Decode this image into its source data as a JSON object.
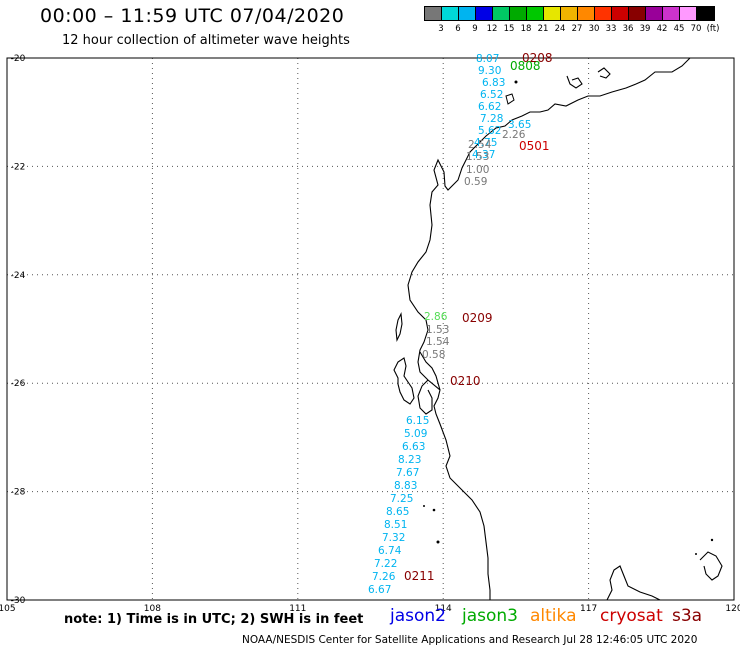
{
  "header": {
    "title": "00:00 – 11:59 UTC 07/04/2020",
    "subtitle": "12 hour collection of altimeter wave heights"
  },
  "legend": {
    "colors": [
      "#777777",
      "#00d8d8",
      "#00b4f0",
      "#0000e6",
      "#00c864",
      "#00aa00",
      "#00c800",
      "#e6e600",
      "#f0b400",
      "#ff8800",
      "#ff3300",
      "#cc0000",
      "#880000",
      "#990099",
      "#cc33cc",
      "#ff99ff",
      "#000000"
    ],
    "labels": [
      "3",
      "6",
      "9",
      "12",
      "15",
      "18",
      "21",
      "24",
      "27",
      "30",
      "33",
      "36",
      "39",
      "42",
      "45",
      "70",
      "(ft)"
    ]
  },
  "axes": {
    "x_ticks": [
      "105",
      "108",
      "111",
      "114",
      "117",
      "120"
    ],
    "y_ticks": [
      "-20",
      "-22",
      "-24",
      "-26",
      "-28",
      "-30"
    ]
  },
  "tracks": [
    {
      "label": "0501",
      "color": "#cc0000"
    },
    {
      "label": "0209",
      "color": "#880000"
    },
    {
      "label": "0210",
      "color": "#880000"
    },
    {
      "label": "0211",
      "color": "#880000"
    },
    {
      "label": "0808",
      "color": "#00aa00"
    },
    {
      "label": "0208",
      "color": "#880000"
    }
  ],
  "wave_labels": [
    {
      "text": "8.07",
      "color": "#00b4f0"
    },
    {
      "text": "9.30",
      "color": "#00b4f0"
    },
    {
      "text": "6.83",
      "color": "#00b4f0"
    },
    {
      "text": "6.52",
      "color": "#00b4f0"
    },
    {
      "text": "6.62",
      "color": "#00b4f0"
    },
    {
      "text": "7.28",
      "color": "#00b4f0"
    },
    {
      "text": "5.62",
      "color": "#00b4f0"
    },
    {
      "text": "4.75",
      "color": "#00b4f0"
    },
    {
      "text": "4.37",
      "color": "#00b4f0"
    },
    {
      "text": "3.65",
      "color": "#00b4f0"
    },
    {
      "text": "2.26",
      "color": "#777777"
    },
    {
      "text": "2.54",
      "color": "#777777"
    },
    {
      "text": "1.53",
      "color": "#777777"
    },
    {
      "text": "1.00",
      "color": "#777777"
    },
    {
      "text": "0.59",
      "color": "#777777"
    },
    {
      "text": "2.86",
      "color": "#55dd55"
    },
    {
      "text": "1.53",
      "color": "#777777"
    },
    {
      "text": "1.54",
      "color": "#777777"
    },
    {
      "text": "0.58",
      "color": "#777777"
    },
    {
      "text": "6.15",
      "color": "#00b4f0"
    },
    {
      "text": "5.09",
      "color": "#00b4f0"
    },
    {
      "text": "6.63",
      "color": "#00b4f0"
    },
    {
      "text": "8.23",
      "color": "#00b4f0"
    },
    {
      "text": "7.67",
      "color": "#00b4f0"
    },
    {
      "text": "8.83",
      "color": "#00b4f0"
    },
    {
      "text": "7.25",
      "color": "#00b4f0"
    },
    {
      "text": "8.65",
      "color": "#00b4f0"
    },
    {
      "text": "8.51",
      "color": "#00b4f0"
    },
    {
      "text": "7.32",
      "color": "#00b4f0"
    },
    {
      "text": "6.74",
      "color": "#00b4f0"
    },
    {
      "text": "7.22",
      "color": "#00b4f0"
    },
    {
      "text": "7.26",
      "color": "#00b4f0"
    },
    {
      "text": "6.67",
      "color": "#00b4f0"
    }
  ],
  "note": "note: 1) Time is in UTC; 2) SWH is in feet",
  "satellites": [
    {
      "name": "jason2",
      "color": "#0000e6"
    },
    {
      "name": "jason3",
      "color": "#00aa00"
    },
    {
      "name": "altika",
      "color": "#ff8800"
    },
    {
      "name": "cryosat",
      "color": "#cc0000"
    },
    {
      "name": "s3a",
      "color": "#880000"
    }
  ],
  "footer": "NOAA/NESDIS Center for Satellite Applications and Research    Jul 28 12:46:05 UTC 2020"
}
